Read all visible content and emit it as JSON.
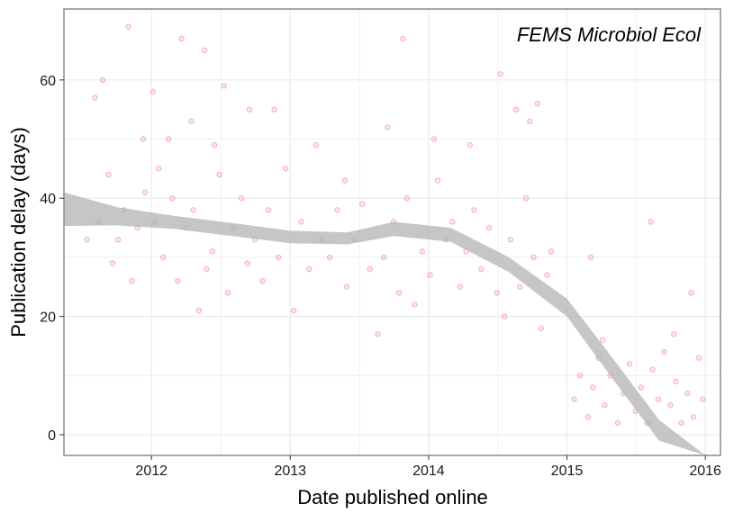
{
  "chart_data": {
    "type": "scatter",
    "title": "",
    "xlabel": "Date published online",
    "ylabel": "Publication delay (days)",
    "annotation": "FEMS Microbiol Ecol",
    "xlim": [
      "2011-05-15",
      "2016-02-10"
    ],
    "ylim": [
      -3.5,
      72
    ],
    "x_ticks": [
      {
        "date": "2012-01-01",
        "label": "2012"
      },
      {
        "date": "2013-01-01",
        "label": "2013"
      },
      {
        "date": "2014-01-01",
        "label": "2014"
      },
      {
        "date": "2015-01-01",
        "label": "2015"
      },
      {
        "date": "2016-01-01",
        "label": "2016"
      }
    ],
    "y_ticks": [
      0,
      20,
      40,
      60
    ],
    "grid": true,
    "colors": {
      "points": "#f8766d",
      "point_stroke": "#e0403a",
      "smooth_band": "#b3b3b3",
      "panel_border": "#8c8c8c",
      "grid": "#ebebeb"
    },
    "points": [
      {
        "x": "2011-08-05",
        "y": 57
      },
      {
        "x": "2011-08-25",
        "y": 60
      },
      {
        "x": "2011-11-01",
        "y": 69
      },
      {
        "x": "2011-09-10",
        "y": 44
      },
      {
        "x": "2011-10-20",
        "y": 38
      },
      {
        "x": "2011-11-25",
        "y": 35
      },
      {
        "x": "2011-12-10",
        "y": 50
      },
      {
        "x": "2012-01-05",
        "y": 58
      },
      {
        "x": "2012-01-20",
        "y": 45
      },
      {
        "x": "2012-02-15",
        "y": 50
      },
      {
        "x": "2012-03-20",
        "y": 67
      },
      {
        "x": "2012-04-15",
        "y": 53
      },
      {
        "x": "2012-05-20",
        "y": 65
      },
      {
        "x": "2012-06-15",
        "y": 49
      },
      {
        "x": "2012-07-10",
        "y": 59
      },
      {
        "x": "2012-09-15",
        "y": 55
      },
      {
        "x": "2012-11-20",
        "y": 55
      },
      {
        "x": "2013-03-10",
        "y": 49
      },
      {
        "x": "2013-05-25",
        "y": 43
      },
      {
        "x": "2013-09-15",
        "y": 52
      },
      {
        "x": "2013-10-25",
        "y": 67
      },
      {
        "x": "2014-01-15",
        "y": 50
      },
      {
        "x": "2014-04-20",
        "y": 49
      },
      {
        "x": "2014-07-10",
        "y": 61
      },
      {
        "x": "2014-08-20",
        "y": 55
      },
      {
        "x": "2014-09-25",
        "y": 53
      },
      {
        "x": "2014-10-15",
        "y": 56
      },
      {
        "x": "2014-11-20",
        "y": 31
      },
      {
        "x": "2011-07-15",
        "y": 33
      },
      {
        "x": "2011-08-15",
        "y": 36
      },
      {
        "x": "2011-09-20",
        "y": 29
      },
      {
        "x": "2011-10-05",
        "y": 33
      },
      {
        "x": "2011-11-10",
        "y": 26
      },
      {
        "x": "2011-12-15",
        "y": 41
      },
      {
        "x": "2012-01-10",
        "y": 36
      },
      {
        "x": "2012-02-01",
        "y": 30
      },
      {
        "x": "2012-02-25",
        "y": 40
      },
      {
        "x": "2012-03-10",
        "y": 26
      },
      {
        "x": "2012-04-01",
        "y": 35
      },
      {
        "x": "2012-04-20",
        "y": 38
      },
      {
        "x": "2012-05-05",
        "y": 21
      },
      {
        "x": "2012-05-25",
        "y": 28
      },
      {
        "x": "2012-06-10",
        "y": 31
      },
      {
        "x": "2012-06-28",
        "y": 44
      },
      {
        "x": "2012-07-20",
        "y": 24
      },
      {
        "x": "2012-08-05",
        "y": 35
      },
      {
        "x": "2012-08-25",
        "y": 40
      },
      {
        "x": "2012-09-10",
        "y": 29
      },
      {
        "x": "2012-09-30",
        "y": 33
      },
      {
        "x": "2012-10-20",
        "y": 26
      },
      {
        "x": "2012-11-05",
        "y": 38
      },
      {
        "x": "2012-12-01",
        "y": 30
      },
      {
        "x": "2012-12-20",
        "y": 45
      },
      {
        "x": "2013-01-10",
        "y": 21
      },
      {
        "x": "2013-01-30",
        "y": 36
      },
      {
        "x": "2013-02-20",
        "y": 28
      },
      {
        "x": "2013-03-25",
        "y": 33
      },
      {
        "x": "2013-04-15",
        "y": 30
      },
      {
        "x": "2013-05-05",
        "y": 38
      },
      {
        "x": "2013-05-30",
        "y": 25
      },
      {
        "x": "2013-06-20",
        "y": 33
      },
      {
        "x": "2013-07-10",
        "y": 39
      },
      {
        "x": "2013-07-30",
        "y": 28
      },
      {
        "x": "2013-08-20",
        "y": 17
      },
      {
        "x": "2013-09-05",
        "y": 30
      },
      {
        "x": "2013-09-30",
        "y": 36
      },
      {
        "x": "2013-10-15",
        "y": 24
      },
      {
        "x": "2013-11-05",
        "y": 40
      },
      {
        "x": "2013-11-25",
        "y": 22
      },
      {
        "x": "2013-12-15",
        "y": 31
      },
      {
        "x": "2014-01-05",
        "y": 27
      },
      {
        "x": "2014-01-25",
        "y": 43
      },
      {
        "x": "2014-02-15",
        "y": 33
      },
      {
        "x": "2014-03-05",
        "y": 36
      },
      {
        "x": "2014-03-25",
        "y": 25
      },
      {
        "x": "2014-04-10",
        "y": 31
      },
      {
        "x": "2014-05-01",
        "y": 38
      },
      {
        "x": "2014-05-20",
        "y": 28
      },
      {
        "x": "2014-06-10",
        "y": 35
      },
      {
        "x": "2014-06-30",
        "y": 24
      },
      {
        "x": "2014-07-20",
        "y": 20
      },
      {
        "x": "2014-08-05",
        "y": 33
      },
      {
        "x": "2014-08-30",
        "y": 25
      },
      {
        "x": "2014-09-15",
        "y": 40
      },
      {
        "x": "2014-10-05",
        "y": 30
      },
      {
        "x": "2014-10-25",
        "y": 18
      },
      {
        "x": "2014-11-10",
        "y": 27
      },
      {
        "x": "2015-01-20",
        "y": 6
      },
      {
        "x": "2015-02-05",
        "y": 10
      },
      {
        "x": "2015-02-25",
        "y": 3
      },
      {
        "x": "2015-03-10",
        "y": 8
      },
      {
        "x": "2015-03-25",
        "y": 13
      },
      {
        "x": "2015-04-10",
        "y": 5
      },
      {
        "x": "2015-04-25",
        "y": 10
      },
      {
        "x": "2015-05-15",
        "y": 2
      },
      {
        "x": "2015-05-30",
        "y": 7
      },
      {
        "x": "2015-06-15",
        "y": 12
      },
      {
        "x": "2015-07-01",
        "y": 4
      },
      {
        "x": "2015-07-15",
        "y": 8
      },
      {
        "x": "2015-08-01",
        "y": 2
      },
      {
        "x": "2015-08-15",
        "y": 11
      },
      {
        "x": "2015-08-30",
        "y": 6
      },
      {
        "x": "2015-09-15",
        "y": 14
      },
      {
        "x": "2015-10-01",
        "y": 5
      },
      {
        "x": "2015-10-15",
        "y": 9
      },
      {
        "x": "2015-10-30",
        "y": 2
      },
      {
        "x": "2015-11-15",
        "y": 7
      },
      {
        "x": "2015-12-01",
        "y": 3
      },
      {
        "x": "2015-12-15",
        "y": 13
      },
      {
        "x": "2015-12-25",
        "y": 6
      },
      {
        "x": "2015-03-05",
        "y": 30
      },
      {
        "x": "2015-08-10",
        "y": 36
      },
      {
        "x": "2015-11-25",
        "y": 24
      },
      {
        "x": "2015-10-10",
        "y": 17
      },
      {
        "x": "2015-04-05",
        "y": 16
      }
    ],
    "smooth": {
      "x": [
        "2011-05-15",
        "2011-10-01",
        "2012-03-01",
        "2012-08-01",
        "2013-01-01",
        "2013-06-01",
        "2013-10-01",
        "2014-03-01",
        "2014-08-01",
        "2015-01-01",
        "2015-05-01",
        "2015-09-01",
        "2016-01-01"
      ],
      "upper": [
        41.0,
        38.5,
        37.0,
        35.8,
        34.5,
        34.2,
        36.0,
        35.0,
        30.0,
        23.0,
        13.0,
        2.5,
        -3.5
      ],
      "lower": [
        35.3,
        35.4,
        34.8,
        33.6,
        32.4,
        32.2,
        33.6,
        32.6,
        27.5,
        20.0,
        9.5,
        -1.0,
        -3.5
      ]
    }
  }
}
